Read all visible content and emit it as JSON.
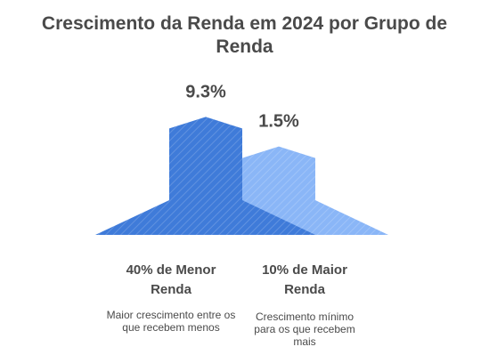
{
  "chart_data": {
    "type": "bar",
    "title": "Crescimento da Renda em 2024 por Grupo de Renda",
    "title_lines": [
      "Crescimento da Renda em 2024 por Grupo de",
      "Renda"
    ],
    "categories": [
      "40% de Menor Renda",
      "10% de Maior Renda"
    ],
    "category_lines": [
      [
        "40% de Menor",
        "Renda"
      ],
      [
        "10% de Maior",
        "Renda"
      ]
    ],
    "values": [
      9.3,
      1.5
    ],
    "value_labels": [
      "9.3%",
      "1.5%"
    ],
    "descriptions": [
      "Maior crescimento entre os que recebem menos",
      "Crescimento mínimo para os que recebem mais"
    ],
    "unit": "%",
    "grid": false,
    "legend": "none",
    "colors": [
      "#3f7bd9",
      "#8ab6f7"
    ]
  }
}
